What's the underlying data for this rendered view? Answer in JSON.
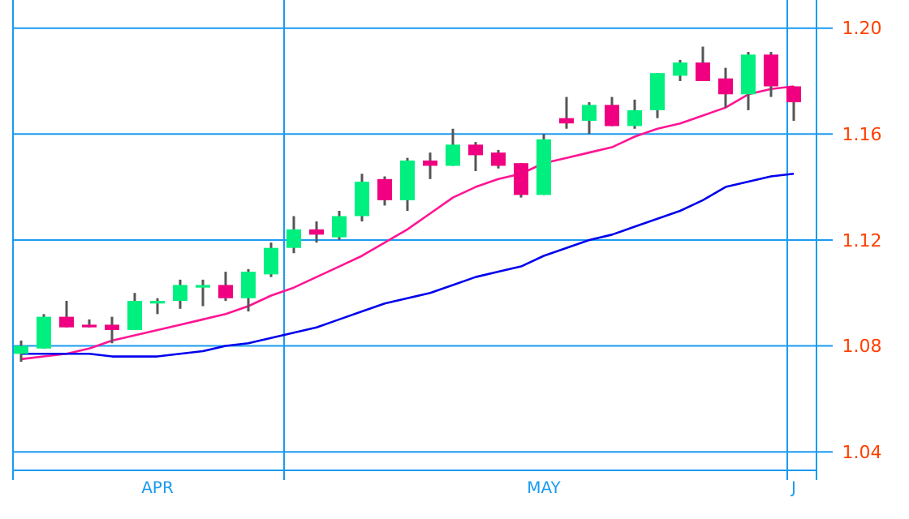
{
  "chart_data": {
    "type": "candlestick",
    "categories": [
      null,
      null,
      null,
      null,
      null,
      null,
      "APR",
      null,
      null,
      null,
      null,
      null,
      null,
      null,
      null,
      null,
      null,
      null,
      null,
      null,
      null,
      null,
      null,
      "MAY",
      null,
      null,
      null,
      null,
      null,
      null,
      null,
      null,
      null,
      null,
      "J"
    ],
    "ohlc": [
      [
        1.077,
        1.082,
        1.074,
        1.08
      ],
      [
        1.079,
        1.092,
        1.079,
        1.091
      ],
      [
        1.091,
        1.097,
        1.087,
        1.087
      ],
      [
        1.088,
        1.09,
        1.087,
        1.087
      ],
      [
        1.088,
        1.091,
        1.081,
        1.086
      ],
      [
        1.086,
        1.1,
        1.086,
        1.097
      ],
      [
        1.096,
        1.098,
        1.092,
        1.097
      ],
      [
        1.097,
        1.105,
        1.094,
        1.103
      ],
      [
        1.102,
        1.105,
        1.095,
        1.103
      ],
      [
        1.103,
        1.108,
        1.097,
        1.098
      ],
      [
        1.098,
        1.109,
        1.093,
        1.108
      ],
      [
        1.107,
        1.119,
        1.106,
        1.117
      ],
      [
        1.117,
        1.129,
        1.115,
        1.124
      ],
      [
        1.124,
        1.127,
        1.119,
        1.122
      ],
      [
        1.121,
        1.131,
        1.12,
        1.129
      ],
      [
        1.129,
        1.145,
        1.127,
        1.142
      ],
      [
        1.143,
        1.144,
        1.133,
        1.135
      ],
      [
        1.135,
        1.151,
        1.131,
        1.15
      ],
      [
        1.15,
        1.153,
        1.143,
        1.148
      ],
      [
        1.148,
        1.162,
        1.148,
        1.156
      ],
      [
        1.156,
        1.157,
        1.146,
        1.152
      ],
      [
        1.153,
        1.154,
        1.147,
        1.148
      ],
      [
        1.149,
        1.149,
        1.136,
        1.137
      ],
      [
        1.137,
        1.16,
        1.137,
        1.158
      ],
      [
        1.166,
        1.174,
        1.162,
        1.164
      ],
      [
        1.165,
        1.172,
        1.16,
        1.171
      ],
      [
        1.171,
        1.174,
        1.163,
        1.163
      ],
      [
        1.163,
        1.173,
        1.162,
        1.169
      ],
      [
        1.169,
        1.183,
        1.166,
        1.183
      ],
      [
        1.182,
        1.188,
        1.18,
        1.187
      ],
      [
        1.187,
        1.193,
        1.18,
        1.18
      ],
      [
        1.181,
        1.185,
        1.17,
        1.175
      ],
      [
        1.175,
        1.191,
        1.169,
        1.19
      ],
      [
        1.19,
        1.191,
        1.174,
        1.178
      ],
      [
        1.178,
        1.178,
        1.165,
        1.172
      ]
    ],
    "colors": [
      "#00f080",
      "#00f080",
      "#f00080",
      "#f00080",
      "#f00080",
      "#00f080",
      "#00f080",
      "#00f080",
      "#00f080",
      "#f00080",
      "#00f080",
      "#00f080",
      "#00f080",
      "#f00080",
      "#00f080",
      "#00f080",
      "#f00080",
      "#00f080",
      "#f00080",
      "#00f080",
      "#f00080",
      "#f00080",
      "#f00080",
      "#00f080",
      "#f00080",
      "#00f080",
      "#f00080",
      "#00f080",
      "#00f080",
      "#00f080",
      "#f00080",
      "#f00080",
      "#00f080",
      "#f00080",
      "#f00080"
    ],
    "series": [
      {
        "type": "line",
        "color": "#ff1493",
        "values": [
          1.075,
          1.076,
          1.077,
          1.079,
          1.082,
          1.084,
          1.086,
          1.088,
          1.09,
          1.092,
          1.095,
          1.099,
          1.102,
          1.106,
          1.11,
          1.114,
          1.119,
          1.124,
          1.13,
          1.136,
          1.14,
          1.143,
          1.145,
          1.149,
          1.151,
          1.153,
          1.155,
          1.159,
          1.162,
          1.164,
          1.167,
          1.17,
          1.175,
          1.177,
          1.178
        ]
      },
      {
        "type": "line",
        "color": "#0000ee",
        "values": [
          1.077,
          1.077,
          1.077,
          1.077,
          1.076,
          1.076,
          1.076,
          1.077,
          1.078,
          1.08,
          1.081,
          1.083,
          1.085,
          1.087,
          1.09,
          1.093,
          1.096,
          1.098,
          1.1,
          1.103,
          1.106,
          1.108,
          1.11,
          1.114,
          1.117,
          1.12,
          1.122,
          1.125,
          1.128,
          1.131,
          1.135,
          1.14,
          1.142,
          1.144,
          1.145
        ]
      }
    ],
    "ylim": [
      1.033,
      1.21
    ],
    "yticks": [
      {
        "value": 1.04,
        "label": "1.04"
      },
      {
        "value": 1.08,
        "label": "1.08"
      },
      {
        "value": 1.12,
        "label": "1.12"
      },
      {
        "value": 1.16,
        "label": "1.16"
      },
      {
        "value": 1.2,
        "label": "1.20"
      }
    ],
    "grid": "y"
  }
}
